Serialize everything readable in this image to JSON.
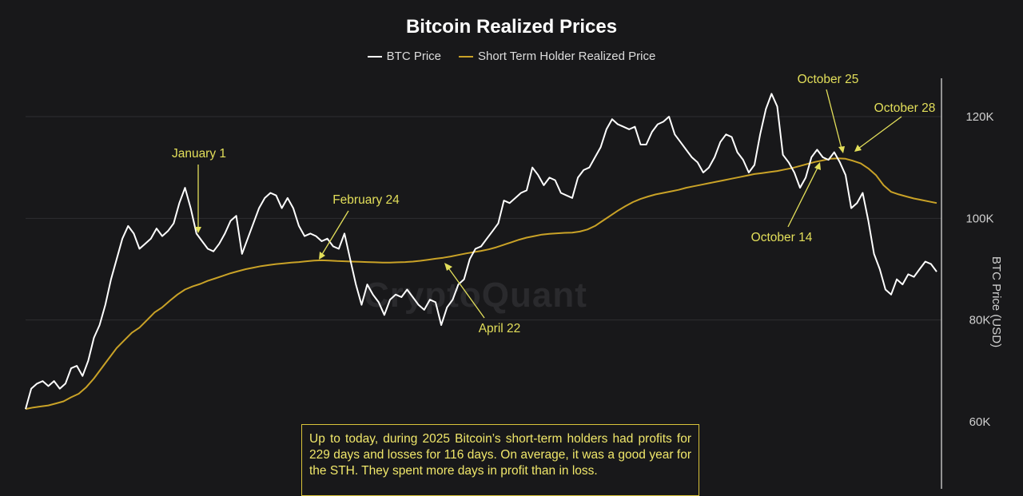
{
  "chart_data": {
    "type": "line",
    "title": "Bitcoin Realized Prices",
    "ylabel": "BTC Price (USD)",
    "y_axis_position": "right",
    "ylim": [
      42000,
      130000
    ],
    "y_ticks": [
      60000,
      80000,
      100000,
      120000
    ],
    "y_tick_labels": [
      "60K",
      "80K",
      "100K",
      "120K"
    ],
    "grid": "horizontal",
    "legend_placement": "top-center",
    "series": [
      {
        "name": "BTC Price",
        "color": "#ffffff",
        "values": [
          62500,
          66500,
          67500,
          68000,
          67000,
          68000,
          66500,
          67500,
          70500,
          71000,
          69000,
          72000,
          76500,
          79000,
          83000,
          88000,
          92000,
          96000,
          98500,
          97000,
          94000,
          95000,
          96000,
          98000,
          96500,
          97500,
          99000,
          103000,
          106000,
          102000,
          97000,
          95500,
          94000,
          93500,
          95000,
          97000,
          99500,
          100500,
          93000,
          96000,
          99000,
          102000,
          104000,
          105000,
          104500,
          102000,
          104000,
          102000,
          98500,
          96500,
          97000,
          96500,
          95500,
          96000,
          94500,
          94000,
          97000,
          92000,
          87000,
          83000,
          87000,
          85000,
          83500,
          81000,
          84000,
          85000,
          84500,
          86000,
          84500,
          83000,
          82000,
          84000,
          83500,
          79000,
          82500,
          84000,
          87000,
          88000,
          92000,
          94000,
          94500,
          96000,
          97500,
          99000,
          103500,
          103000,
          104000,
          105000,
          105500,
          110000,
          108500,
          106500,
          108000,
          107500,
          105000,
          104500,
          104000,
          108000,
          109500,
          110000,
          112000,
          114000,
          117500,
          119500,
          118500,
          118000,
          117500,
          118000,
          114500,
          114500,
          117000,
          118500,
          119000,
          120000,
          116500,
          115000,
          113500,
          112000,
          111000,
          109000,
          110000,
          112000,
          115000,
          116500,
          116000,
          113000,
          111500,
          109000,
          110500,
          116500,
          121500,
          124500,
          122000,
          112500,
          111000,
          109000,
          106000,
          108000,
          112000,
          113500,
          112000,
          111500,
          113000,
          111000,
          108500,
          102000,
          103000,
          105000,
          99500,
          93000,
          90000,
          86000,
          85000,
          88000,
          87000,
          89000,
          88500,
          90000,
          91500,
          91000,
          89500
        ],
        "label_first_date": "January 1",
        "label_last_date": "October 28"
      },
      {
        "name": "Short Term Holder Realized Price",
        "color": "#c9a227",
        "values": [
          62500,
          62800,
          63000,
          63200,
          63600,
          64000,
          64800,
          65500,
          66800,
          68500,
          70500,
          72500,
          74500,
          76000,
          77500,
          78500,
          80000,
          81500,
          82500,
          83800,
          85000,
          86000,
          86600,
          87100,
          87700,
          88200,
          88700,
          89200,
          89600,
          90000,
          90300,
          90600,
          90800,
          91000,
          91150,
          91300,
          91400,
          91550,
          91700,
          91750,
          91700,
          91600,
          91550,
          91500,
          91450,
          91400,
          91350,
          91300,
          91300,
          91350,
          91400,
          91500,
          91650,
          91850,
          92050,
          92250,
          92500,
          92800,
          93100,
          93350,
          93600,
          93900,
          94300,
          94800,
          95300,
          95800,
          96200,
          96500,
          96800,
          96950,
          97050,
          97150,
          97200,
          97400,
          97800,
          98500,
          99500,
          100500,
          101500,
          102400,
          103200,
          103800,
          104300,
          104700,
          105000,
          105300,
          105600,
          106000,
          106300,
          106600,
          106900,
          107200,
          107500,
          107800,
          108100,
          108400,
          108700,
          108900,
          109100,
          109300,
          109600,
          109900,
          110300,
          110700,
          111100,
          111400,
          111700,
          111800,
          111700,
          111300,
          110800,
          109800,
          108500,
          106500,
          105200,
          104700,
          104300,
          103900,
          103600,
          103300,
          103000
        ],
        "sample_points": 121
      }
    ],
    "annotations": [
      {
        "id": "jan1",
        "label": "January 1"
      },
      {
        "id": "feb24",
        "label": "February 24"
      },
      {
        "id": "apr22",
        "label": "April 22"
      },
      {
        "id": "oct14",
        "label": "October 14"
      },
      {
        "id": "oct25",
        "label": "October 25"
      },
      {
        "id": "oct28",
        "label": "October 28"
      }
    ],
    "annotation_color": "#e3df5a"
  },
  "note": {
    "text": "Up to today, during 2025 Bitcoin’s short-term holders had profits for 229 days and losses for 116 days. On average, it was a good year for the STH. They spent more days in profit than in loss."
  },
  "watermark": "CryptoQuant"
}
